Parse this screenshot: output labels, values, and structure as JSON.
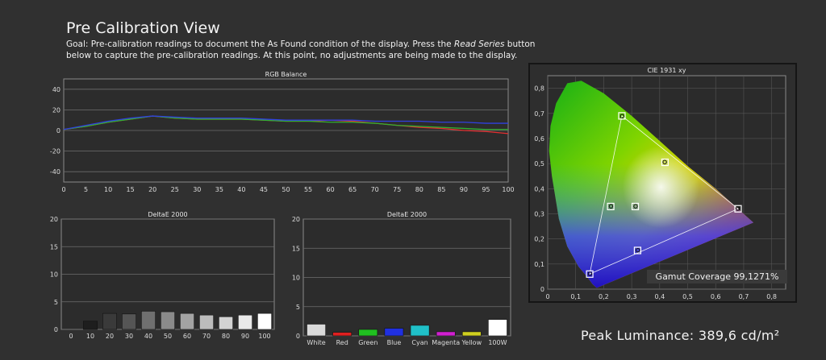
{
  "header": {
    "title": "Pre Calibration View",
    "goal_prefix": "Goal: Pre-calibration readings to document the As Found condition of the display. Press the ",
    "goal_em": "Read Series",
    "goal_suffix": " button below to capture the pre-calibration readings. At this point, no adjustments are being made to the display."
  },
  "footer": {
    "peak_luminance": "Peak Luminance: 389,6 cd/m²"
  },
  "chart_data": [
    {
      "id": "rgb-balance",
      "type": "line",
      "title": "RGB Balance",
      "x": [
        0,
        5,
        10,
        15,
        20,
        25,
        30,
        35,
        40,
        45,
        50,
        55,
        60,
        65,
        70,
        75,
        80,
        85,
        90,
        95,
        100
      ],
      "x_ticks": [
        "0",
        "5",
        "10",
        "15",
        "20",
        "25",
        "30",
        "35",
        "40",
        "45",
        "50",
        "55",
        "60",
        "65",
        "70",
        "75",
        "80",
        "85",
        "90",
        "95",
        "100"
      ],
      "y_ticks": [
        "40",
        "20",
        "0",
        "-20",
        "-40"
      ],
      "ylim": [
        -50,
        50
      ],
      "xlim": [
        0,
        100
      ],
      "grid": true,
      "series": [
        {
          "color": "#e53030",
          "values": [
            1,
            4,
            8,
            11,
            14,
            12,
            11,
            11,
            11,
            10,
            9,
            9,
            10,
            9,
            7,
            5,
            3,
            2,
            0,
            -1,
            -3
          ]
        },
        {
          "color": "#30b030",
          "values": [
            1,
            4,
            8,
            11,
            14,
            12,
            11,
            11,
            11,
            10,
            9,
            9,
            8,
            8,
            7,
            5,
            4,
            3,
            2,
            1,
            1
          ]
        },
        {
          "color": "#3040e0",
          "values": [
            1,
            5,
            9,
            12,
            14,
            13,
            12,
            12,
            12,
            11,
            10,
            10,
            10,
            10,
            9,
            9,
            9,
            8,
            8,
            7,
            7
          ]
        }
      ]
    },
    {
      "id": "deltae-grayscale",
      "type": "bar",
      "title": "DeltaE 2000",
      "categories": [
        "0",
        "10",
        "20",
        "30",
        "40",
        "50",
        "60",
        "70",
        "80",
        "90",
        "100"
      ],
      "values": [
        0,
        1.5,
        2.9,
        2.8,
        3.3,
        3.2,
        2.9,
        2.6,
        2.3,
        2.6,
        2.9
      ],
      "colors": [
        "#000000",
        "#1e1e1e",
        "#3a3a3a",
        "#555555",
        "#707070",
        "#8a8a8a",
        "#a3a3a3",
        "#bcbcbc",
        "#d3d3d3",
        "#e9e9e9",
        "#ffffff"
      ],
      "y_ticks": [
        "20",
        "15",
        "10",
        "5",
        "0"
      ],
      "ylim": [
        0,
        20
      ]
    },
    {
      "id": "deltae-colors",
      "type": "bar",
      "title": "DeltaE 2000",
      "categories": [
        "White",
        "Red",
        "Green",
        "Blue",
        "Cyan",
        "Magenta",
        "Yellow",
        "100W"
      ],
      "values": [
        2.0,
        0.6,
        1.1,
        1.3,
        1.8,
        0.7,
        0.7,
        2.8
      ],
      "colors": [
        "#d9d9d9",
        "#e02020",
        "#20c020",
        "#2030e0",
        "#20c0c8",
        "#d020d0",
        "#d0d020",
        "#ffffff"
      ],
      "y_ticks": [
        "20",
        "15",
        "10",
        "5",
        "0"
      ],
      "ylim": [
        0,
        20
      ]
    },
    {
      "id": "cie-1931",
      "type": "scatter",
      "title": "CIE 1931 xy",
      "xlim": [
        0,
        0.85
      ],
      "ylim": [
        0,
        0.85
      ],
      "x_ticks": [
        "0",
        "0,1",
        "0,2",
        "0,3",
        "0,4",
        "0,5",
        "0,6",
        "0,7",
        "0,8"
      ],
      "y_ticks": [
        "0,8",
        "0,7",
        "0,6",
        "0,5",
        "0,4",
        "0,3",
        "0,2",
        "0,1",
        "0"
      ],
      "gamut": [
        [
          0.68,
          0.32
        ],
        [
          0.265,
          0.69
        ],
        [
          0.15,
          0.06
        ]
      ],
      "targets": [
        [
          0.68,
          0.32
        ],
        [
          0.265,
          0.69
        ],
        [
          0.15,
          0.06
        ],
        [
          0.225,
          0.329
        ],
        [
          0.321,
          0.154
        ],
        [
          0.419,
          0.505
        ],
        [
          0.3127,
          0.329
        ]
      ],
      "measured": [
        [
          0.679,
          0.321
        ],
        [
          0.266,
          0.689
        ],
        [
          0.151,
          0.061
        ],
        [
          0.226,
          0.33
        ],
        [
          0.322,
          0.155
        ],
        [
          0.418,
          0.506
        ],
        [
          0.314,
          0.33
        ]
      ],
      "gamut_coverage": "Gamut Coverage 99,1271%"
    }
  ]
}
